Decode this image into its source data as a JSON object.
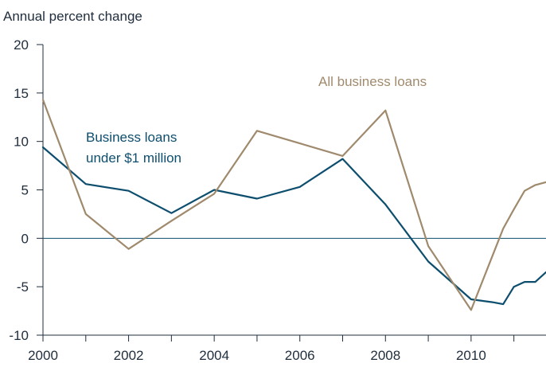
{
  "chart_data": {
    "type": "line",
    "title": "",
    "ylabel": "Annual percent change",
    "xlabel": "",
    "ylim": [
      -10,
      20
    ],
    "xlim": [
      2000,
      2011.75
    ],
    "y_ticks": [
      "20",
      "15",
      "10",
      "5",
      "0",
      "-5",
      "-10"
    ],
    "x_ticks": [
      "2000",
      "2002",
      "2004",
      "2006",
      "2008",
      "2010"
    ],
    "grid": false,
    "zero_line": true,
    "colors": {
      "small_loans": "#0d4e6e",
      "all_loans": "#a08a6d",
      "zero_line": "#0d4e6e",
      "axis": "#1f2d3d"
    },
    "series": [
      {
        "name": "Business loans under $1 million",
        "label_lines": [
          "Business loans",
          "under $1 million"
        ],
        "color": "#0d4e6e",
        "points": [
          [
            2000,
            9.4
          ],
          [
            2001,
            5.6
          ],
          [
            2002,
            4.9
          ],
          [
            2003,
            2.6
          ],
          [
            2004,
            5.0
          ],
          [
            2005,
            4.1
          ],
          [
            2006,
            5.3
          ],
          [
            2007,
            8.2
          ],
          [
            2008,
            3.5
          ],
          [
            2009,
            -2.4
          ],
          [
            2010,
            -6.3
          ],
          [
            2010.5,
            -6.6
          ],
          [
            2010.75,
            -6.8
          ],
          [
            2011,
            -5.0
          ],
          [
            2011.25,
            -4.5
          ],
          [
            2011.5,
            -4.5
          ],
          [
            2011.75,
            -3.5
          ]
        ]
      },
      {
        "name": "All business loans",
        "label_lines": [
          "All business loans"
        ],
        "color": "#a08a6d",
        "points": [
          [
            2000,
            14.3
          ],
          [
            2001,
            2.5
          ],
          [
            2002,
            -1.1
          ],
          [
            2003,
            1.8
          ],
          [
            2004,
            4.6
          ],
          [
            2005,
            11.1
          ],
          [
            2006,
            9.8
          ],
          [
            2007,
            8.5
          ],
          [
            2008,
            13.2
          ],
          [
            2009,
            -0.8
          ],
          [
            2010,
            -7.4
          ],
          [
            2010.75,
            1.0
          ],
          [
            2011,
            3.0
          ],
          [
            2011.25,
            4.9
          ],
          [
            2011.5,
            5.5
          ],
          [
            2011.75,
            5.8
          ]
        ]
      }
    ]
  }
}
